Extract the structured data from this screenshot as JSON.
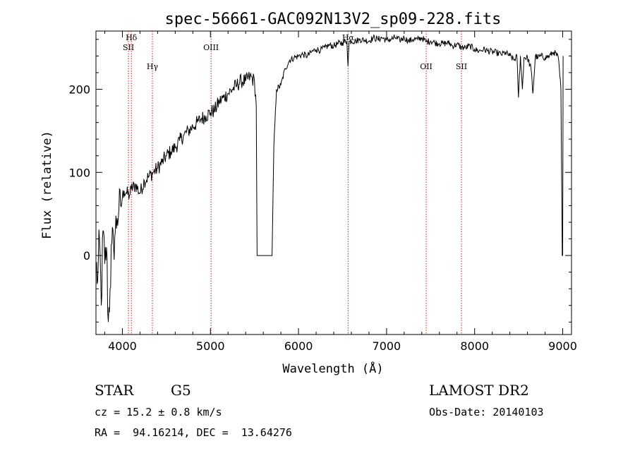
{
  "chart_data": {
    "type": "line",
    "title": "spec-56661-GAC092N13V2_sp09-228.fits",
    "xlabel": "Wavelength (Å)",
    "ylabel": "Flux (relative)",
    "xlim": [
      3700,
      9100
    ],
    "ylim": [
      -95,
      270
    ],
    "xticks": [
      4000,
      5000,
      6000,
      7000,
      8000,
      9000
    ],
    "xtick_labels": [
      "4000",
      "5000",
      "6000",
      "7000",
      "8000",
      "9000"
    ],
    "yticks": [
      0,
      100,
      200
    ],
    "ytick_labels": [
      "0",
      "100",
      "200"
    ],
    "grid": false,
    "series": [
      {
        "x": [
          3700,
          3720,
          3740,
          3760,
          3780,
          3800,
          3820,
          3840,
          3860,
          3880,
          3900,
          3920,
          3940,
          3960,
          3980,
          4000,
          4020,
          4050,
          4080,
          4100,
          4150,
          4200,
          4250,
          4300,
          4350,
          4400,
          4450,
          4500,
          4550,
          4600,
          4650,
          4700,
          4750,
          4800,
          4850,
          4900,
          4950,
          5000,
          5050,
          5100,
          5150,
          5200,
          5250,
          5300,
          5350,
          5400,
          5450,
          5500,
          5520,
          5530,
          5550,
          5600,
          5650,
          5700,
          5720,
          5750,
          5800,
          5850,
          5900,
          5950,
          6000,
          6050,
          6100,
          6150,
          6200,
          6250,
          6300,
          6350,
          6400,
          6450,
          6500,
          6550,
          6562,
          6575,
          6600,
          6650,
          6700,
          6750,
          6800,
          6850,
          6900,
          6950,
          7000,
          7050,
          7100,
          7150,
          7200,
          7250,
          7300,
          7350,
          7400,
          7450,
          7500,
          7550,
          7600,
          7650,
          7700,
          7750,
          7800,
          7850,
          7900,
          7950,
          8000,
          8050,
          8100,
          8150,
          8200,
          8250,
          8300,
          8350,
          8400,
          8450,
          8480,
          8498,
          8520,
          8542,
          8560,
          8600,
          8640,
          8662,
          8690,
          8720,
          8750,
          8800,
          8850,
          8900,
          8950,
          8980,
          8995,
          9000,
          9005
        ],
        "y": [
          -10,
          -30,
          20,
          -60,
          30,
          -10,
          10,
          -80,
          -40,
          15,
          10,
          30,
          45,
          55,
          60,
          70,
          78,
          75,
          72,
          80,
          85,
          75,
          90,
          95,
          100,
          105,
          112,
          120,
          125,
          130,
          138,
          145,
          150,
          155,
          160,
          165,
          168,
          172,
          175,
          185,
          190,
          195,
          200,
          205,
          210,
          210,
          215,
          210,
          180,
          0,
          0,
          0,
          0,
          0,
          130,
          200,
          205,
          225,
          235,
          238,
          240,
          242,
          240,
          245,
          248,
          247,
          250,
          253,
          252,
          255,
          256,
          258,
          228,
          257,
          258,
          258,
          260,
          259,
          258,
          262,
          260,
          262,
          259,
          260,
          262,
          259,
          262,
          258,
          260,
          260,
          262,
          257,
          258,
          256,
          255,
          255,
          256,
          252,
          254,
          250,
          250,
          252,
          248,
          246,
          248,
          246,
          245,
          244,
          242,
          244,
          240,
          235,
          240,
          190,
          240,
          200,
          238,
          238,
          225,
          195,
          240,
          238,
          240,
          238,
          240,
          245,
          238,
          200,
          0,
          0,
          240
        ]
      }
    ],
    "line_color": "#000000",
    "markers": {
      "color": "#cc1b1b",
      "lines": [
        {
          "x": 4069,
          "label": "SII",
          "label_y": 247
        },
        {
          "x": 4102,
          "label": "Hδ",
          "label_y": 259
        },
        {
          "x": 4341,
          "label": "Hγ",
          "label_y": 224
        },
        {
          "x": 5007,
          "label": "OIII",
          "label_y": 247
        },
        {
          "x": 6563,
          "label": "Hα",
          "label_y": 259
        },
        {
          "x": 7450,
          "label": "OII",
          "label_y": 224
        },
        {
          "x": 7850,
          "label": "SII",
          "label_y": 224
        }
      ]
    }
  },
  "footer": {
    "class_type": "STAR",
    "subclass": "G5",
    "cz": "cz = 15.2 ± 0.8 km/s",
    "coords": "RA =  94.16214, DEC =  13.64276",
    "survey": "LAMOST DR2",
    "obs_date": "Obs-Date: 20140103"
  }
}
